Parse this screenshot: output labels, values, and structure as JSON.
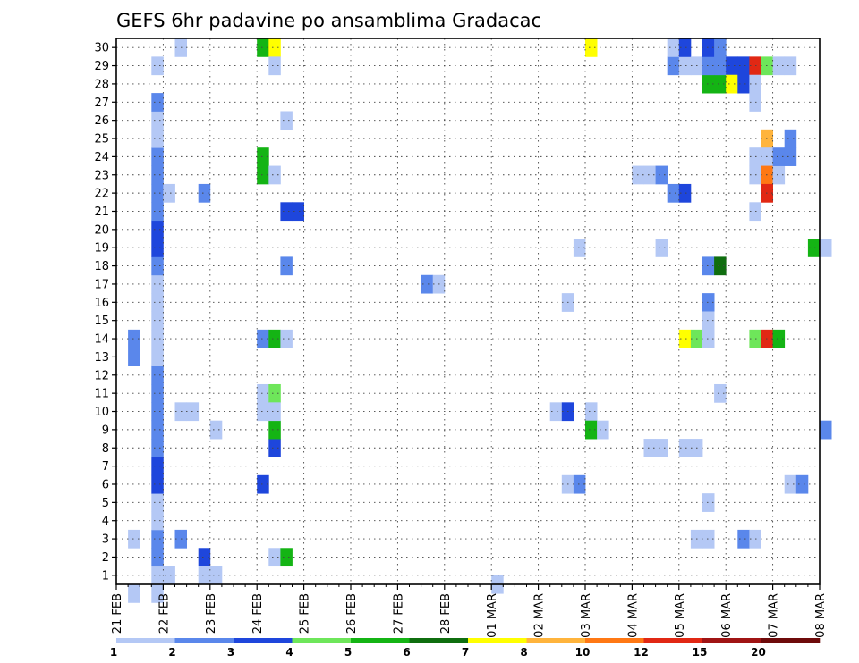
{
  "chart_data": {
    "type": "heatmap",
    "title": "GEFS 6hr padavine po ansamblima Gradacac",
    "xlabel": "",
    "ylabel": "",
    "x_tick_labels": [
      "21 FEB",
      "22 FEB",
      "23 FEB",
      "24 FEB",
      "25 FEB",
      "26 FEB",
      "27 FEB",
      "28 FEB",
      "01 MAR",
      "02 MAR",
      "03 MAR",
      "04 MAR",
      "05 MAR",
      "06 MAR",
      "07 MAR",
      "08 MAR"
    ],
    "y_tick_labels": [
      "1",
      "2",
      "3",
      "4",
      "5",
      "6",
      "7",
      "8",
      "9",
      "10",
      "11",
      "12",
      "13",
      "14",
      "15",
      "16",
      "17",
      "18",
      "19",
      "20",
      "21",
      "22",
      "23",
      "24",
      "25",
      "26",
      "27",
      "28",
      "29",
      "30"
    ],
    "x_unit": "6-hour step since 21 FEB 00z",
    "x_range": [
      0,
      60
    ],
    "y_range": [
      0.5,
      30.5
    ],
    "grid": true,
    "colorbar": {
      "placement": "bottom",
      "colors": [
        "#b4c8f5",
        "#5a87eb",
        "#1e46dc",
        "#6ee65a",
        "#14b414",
        "#0f6e0f",
        "#ffff00",
        "#ffb43c",
        "#ff7814",
        "#e12814",
        "#a01414",
        "#6e0a0a"
      ],
      "labels": [
        "1",
        "2",
        "3",
        "4",
        "5",
        "6",
        "7",
        "8",
        "10",
        "12",
        "15",
        "20"
      ]
    },
    "cells": [
      [
        1,
        0,
        1
      ],
      [
        1,
        3,
        1
      ],
      [
        1,
        13,
        2
      ],
      [
        1,
        14,
        2
      ],
      [
        3,
        0,
        1
      ],
      [
        3,
        1,
        1
      ],
      [
        3,
        2,
        2
      ],
      [
        3,
        3,
        2
      ],
      [
        3,
        4,
        1
      ],
      [
        3,
        5,
        1
      ],
      [
        3,
        6,
        3
      ],
      [
        3,
        7,
        3
      ],
      [
        3,
        8,
        2
      ],
      [
        3,
        9,
        2
      ],
      [
        3,
        10,
        2
      ],
      [
        3,
        11,
        2
      ],
      [
        3,
        12,
        2
      ],
      [
        3,
        13,
        1
      ],
      [
        3,
        14,
        1
      ],
      [
        3,
        15,
        1
      ],
      [
        3,
        16,
        1
      ],
      [
        3,
        17,
        1
      ],
      [
        3,
        18,
        2
      ],
      [
        3,
        19,
        3
      ],
      [
        3,
        20,
        3
      ],
      [
        3,
        21,
        2
      ],
      [
        3,
        22,
        2
      ],
      [
        3,
        23,
        2
      ],
      [
        3,
        24,
        2
      ],
      [
        3,
        25,
        1
      ],
      [
        3,
        26,
        1
      ],
      [
        3,
        27,
        2
      ],
      [
        3,
        29,
        1
      ],
      [
        4,
        1,
        1
      ],
      [
        4,
        22,
        1
      ],
      [
        5,
        10,
        1
      ],
      [
        5,
        3,
        2
      ],
      [
        5,
        30,
        1
      ],
      [
        6,
        10,
        1
      ],
      [
        7,
        22,
        2
      ],
      [
        7,
        2,
        3
      ],
      [
        7,
        1,
        1
      ],
      [
        8,
        9,
        1
      ],
      [
        8,
        1,
        1
      ],
      [
        12,
        10,
        1
      ],
      [
        12,
        6,
        3
      ],
      [
        12,
        11,
        1
      ],
      [
        12,
        14,
        2
      ],
      [
        12,
        23,
        5
      ],
      [
        12,
        24,
        5
      ],
      [
        12,
        30,
        5
      ],
      [
        13,
        2,
        1
      ],
      [
        13,
        11,
        4
      ],
      [
        13,
        8,
        3
      ],
      [
        13,
        9,
        5
      ],
      [
        13,
        14,
        5
      ],
      [
        13,
        30,
        7
      ],
      [
        13,
        29,
        1
      ],
      [
        13,
        23,
        1
      ],
      [
        13,
        10,
        1
      ],
      [
        14,
        14,
        1
      ],
      [
        14,
        2,
        5
      ],
      [
        14,
        26,
        1
      ],
      [
        14,
        18,
        2
      ],
      [
        14,
        21,
        3
      ],
      [
        15,
        21,
        3
      ],
      [
        26,
        17,
        2
      ],
      [
        27,
        17,
        1
      ],
      [
        32,
        0.5,
        1
      ],
      [
        37,
        10,
        1
      ],
      [
        38,
        10,
        3
      ],
      [
        38,
        6,
        1
      ],
      [
        38,
        16,
        1
      ],
      [
        39,
        6,
        2
      ],
      [
        39,
        19,
        1
      ],
      [
        40,
        10,
        1
      ],
      [
        40,
        9,
        5
      ],
      [
        40,
        30,
        7
      ],
      [
        41,
        9,
        1
      ],
      [
        44,
        23,
        1
      ],
      [
        45,
        23,
        1
      ],
      [
        45,
        8,
        1
      ],
      [
        46,
        8,
        1
      ],
      [
        46,
        23,
        2
      ],
      [
        46,
        19,
        1
      ],
      [
        47,
        22,
        2
      ],
      [
        47,
        29,
        2
      ],
      [
        47,
        30,
        1
      ],
      [
        48,
        22,
        3
      ],
      [
        48,
        29,
        1
      ],
      [
        48,
        30,
        3
      ],
      [
        48,
        14,
        7
      ],
      [
        48,
        8,
        1
      ],
      [
        49,
        14,
        4
      ],
      [
        49,
        3,
        1
      ],
      [
        49,
        29,
        1
      ],
      [
        49,
        8,
        1
      ],
      [
        50,
        16,
        2
      ],
      [
        50,
        15,
        1
      ],
      [
        50,
        14,
        1
      ],
      [
        50,
        18,
        2
      ],
      [
        50,
        5,
        1
      ],
      [
        50,
        3,
        1
      ],
      [
        50,
        28,
        5
      ],
      [
        50,
        29,
        2
      ],
      [
        50,
        30,
        3
      ],
      [
        51,
        18,
        6
      ],
      [
        51,
        28,
        5
      ],
      [
        51,
        29,
        2
      ],
      [
        51,
        11,
        1
      ],
      [
        51,
        30,
        2
      ],
      [
        52,
        29,
        3
      ],
      [
        52,
        28,
        7
      ],
      [
        53,
        29,
        3
      ],
      [
        53,
        28,
        3
      ],
      [
        53,
        3,
        2
      ],
      [
        54,
        29,
        10
      ],
      [
        54,
        27,
        1
      ],
      [
        54,
        28,
        1
      ],
      [
        54,
        14,
        4
      ],
      [
        54,
        3,
        1
      ],
      [
        54,
        23,
        1
      ],
      [
        54,
        24,
        1
      ],
      [
        54,
        21,
        1
      ],
      [
        55,
        29,
        4
      ],
      [
        55,
        25,
        8
      ],
      [
        55,
        24,
        1
      ],
      [
        55,
        23,
        9
      ],
      [
        55,
        22,
        10
      ],
      [
        55,
        14,
        10
      ],
      [
        56,
        14,
        5
      ],
      [
        56,
        23,
        1
      ],
      [
        56,
        24,
        2
      ],
      [
        56,
        29,
        1
      ],
      [
        57,
        24,
        2
      ],
      [
        57,
        25,
        2
      ],
      [
        57,
        6,
        1
      ],
      [
        57,
        29,
        1
      ],
      [
        58,
        6,
        2
      ],
      [
        59,
        19,
        5
      ],
      [
        60,
        19,
        1
      ],
      [
        60,
        9,
        2
      ]
    ]
  }
}
